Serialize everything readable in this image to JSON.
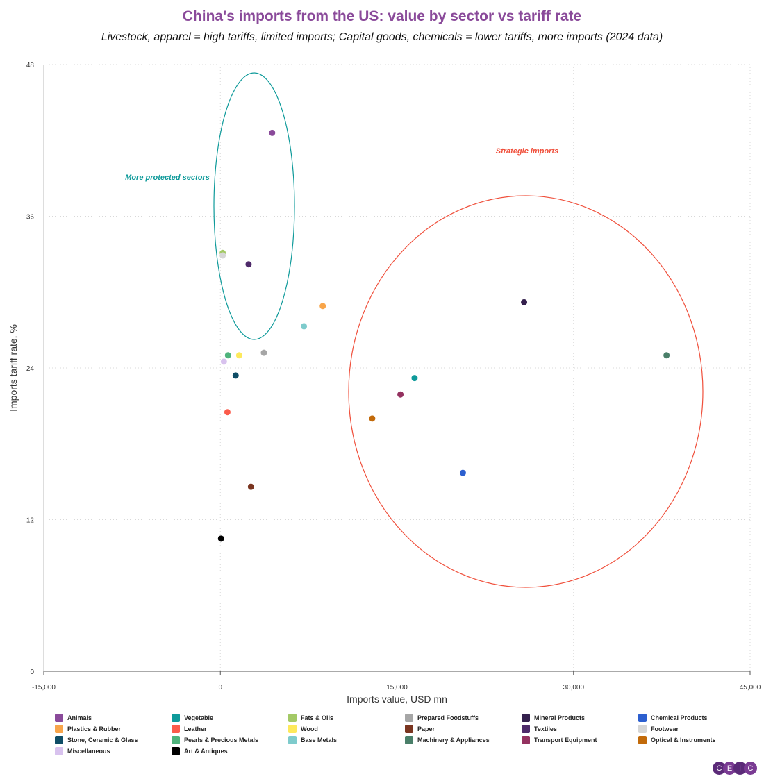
{
  "chart_data": {
    "type": "scatter",
    "title": "China's imports from the US: value by sector vs tariff rate",
    "subtitle": "Livestock, apparel = high tariffs, limited imports; Capital goods, chemicals = lower tariffs, more imports (2024 data)",
    "xlabel": "Imports value, USD mn",
    "ylabel": "Imports tariff rate, %",
    "xlim": [
      -15000,
      45000
    ],
    "ylim": [
      0,
      48
    ],
    "xticks": [
      -15000,
      0,
      15000,
      30000,
      45000
    ],
    "xtick_labels": [
      "-15,000",
      "0",
      "15,000",
      "30,000",
      "45,000"
    ],
    "yticks": [
      0,
      12,
      24,
      36,
      48
    ],
    "grid": true,
    "legend": "bottom",
    "annotations": [
      {
        "text": "More protected sectors",
        "color": "#0e9a9a"
      },
      {
        "text": "Strategic imports",
        "color": "#f0503c"
      }
    ],
    "series": [
      {
        "name": "Animals",
        "color": "#8a4a9a",
        "x": 4400,
        "y": 42.6
      },
      {
        "name": "Vegetable",
        "color": "#0e9a9a",
        "x": 16500,
        "y": 23.2
      },
      {
        "name": "Fats & Oils",
        "color": "#a3c966",
        "x": 200,
        "y": 33.1
      },
      {
        "name": "Prepared Foodstuffs",
        "color": "#a6a6a6",
        "x": 3700,
        "y": 25.2
      },
      {
        "name": "Mineral Products",
        "color": "#34204d",
        "x": 25800,
        "y": 29.2
      },
      {
        "name": "Chemical Products",
        "color": "#2c5fcf",
        "x": 20600,
        "y": 15.7
      },
      {
        "name": "Plastics & Rubber",
        "color": "#f8a54a",
        "x": 8700,
        "y": 28.9
      },
      {
        "name": "Leather",
        "color": "#fb5b4b",
        "x": 600,
        "y": 20.5
      },
      {
        "name": "Wood",
        "color": "#fde95c",
        "x": 1600,
        "y": 25.0
      },
      {
        "name": "Paper",
        "color": "#7a3520",
        "x": 2600,
        "y": 14.6
      },
      {
        "name": "Textiles",
        "color": "#4e2a6a",
        "x": 2400,
        "y": 32.2
      },
      {
        "name": "Footwear",
        "color": "#d6d6d6",
        "x": 200,
        "y": 32.9
      },
      {
        "name": "Stone, Ceramic & Glass",
        "color": "#0f4d66",
        "x": 1300,
        "y": 23.4
      },
      {
        "name": "Pearls & Precious Metals",
        "color": "#4fb37c",
        "x": 650,
        "y": 25.0
      },
      {
        "name": "Base Metals",
        "color": "#7ecbcc",
        "x": 7100,
        "y": 27.3
      },
      {
        "name": "Machinery & Appliances",
        "color": "#4a7f69",
        "x": 37900,
        "y": 25.0
      },
      {
        "name": "Transport Equipment",
        "color": "#943260",
        "x": 15300,
        "y": 21.9
      },
      {
        "name": "Optical & Instruments",
        "color": "#c26a0a",
        "x": 12900,
        "y": 20.0
      },
      {
        "name": "Miscellaneous",
        "color": "#d8c2ee",
        "x": 300,
        "y": 24.5
      },
      {
        "name": "Art & Antiques",
        "color": "#000000",
        "x": 60,
        "y": 10.5
      }
    ]
  },
  "logo": [
    "C",
    "E",
    "I",
    "C"
  ]
}
